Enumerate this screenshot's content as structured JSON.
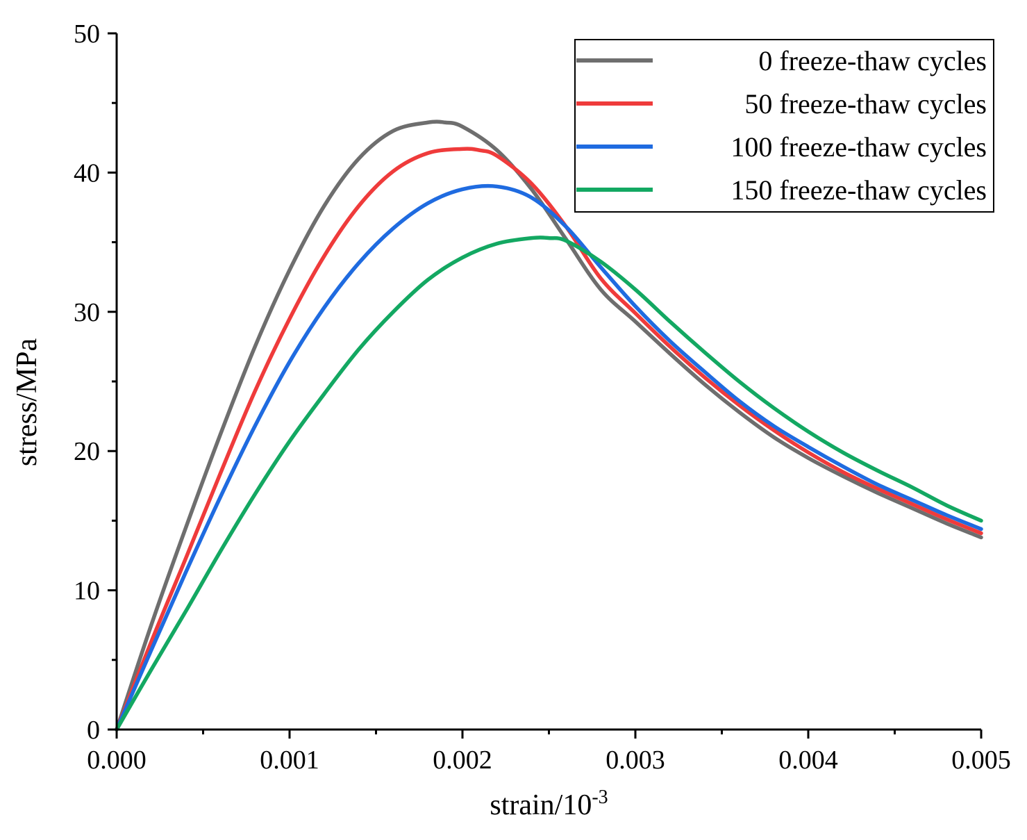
{
  "chart_data": {
    "type": "line",
    "xlabel": "strain/10",
    "xlabel_superscript": "-3",
    "ylabel": "stress/MPa",
    "xlim": [
      0,
      0.005
    ],
    "ylim": [
      0,
      50
    ],
    "x_ticks": [
      0,
      0.001,
      0.002,
      0.003,
      0.004,
      0.005
    ],
    "x_tick_labels": [
      "0.000",
      "0.001",
      "0.002",
      "0.003",
      "0.004",
      "0.005"
    ],
    "x_minor_ticks": [
      0.0005,
      0.0015,
      0.0025,
      0.0035,
      0.0045
    ],
    "y_ticks": [
      0,
      10,
      20,
      30,
      40,
      50
    ],
    "y_tick_labels": [
      "0",
      "10",
      "20",
      "30",
      "40",
      "50"
    ],
    "y_minor_ticks": [
      5,
      15,
      25,
      35,
      45
    ],
    "grid": false,
    "legend_position": "top-right",
    "series": [
      {
        "name": "0 freeze-thaw cycles",
        "color": "#6e6e6e",
        "x": [
          0,
          0.0002,
          0.0004,
          0.0006,
          0.0008,
          0.001,
          0.0012,
          0.0014,
          0.0016,
          0.0018,
          0.0019,
          0.002,
          0.0022,
          0.0024,
          0.0026,
          0.0028,
          0.003,
          0.0032,
          0.0034,
          0.0036,
          0.0038,
          0.004,
          0.0042,
          0.0044,
          0.0046,
          0.0048,
          0.005
        ],
        "values": [
          0,
          7.5,
          14.5,
          21.2,
          27.5,
          33.0,
          37.6,
          41.0,
          43.0,
          43.6,
          43.6,
          43.3,
          41.6,
          38.8,
          35.2,
          31.6,
          29.3,
          27.0,
          24.8,
          22.8,
          21.0,
          19.5,
          18.2,
          17.0,
          15.9,
          14.8,
          13.8
        ]
      },
      {
        "name": "50 freeze-thaw cycles",
        "color": "#ef3b3b",
        "x": [
          0,
          0.0002,
          0.0004,
          0.0006,
          0.0008,
          0.001,
          0.0012,
          0.0014,
          0.0016,
          0.0018,
          0.002,
          0.0021,
          0.0022,
          0.0024,
          0.0026,
          0.0028,
          0.003,
          0.0032,
          0.0034,
          0.0036,
          0.0038,
          0.004,
          0.0042,
          0.0044,
          0.0046,
          0.0048,
          0.005
        ],
        "values": [
          0,
          6.3,
          12.3,
          18.4,
          24.3,
          29.5,
          34.0,
          37.6,
          40.1,
          41.4,
          41.7,
          41.6,
          41.2,
          39.2,
          36.1,
          32.4,
          29.9,
          27.5,
          25.3,
          23.3,
          21.5,
          19.9,
          18.5,
          17.3,
          16.2,
          15.1,
          14.1
        ]
      },
      {
        "name": "100 freeze-thaw cycles",
        "color": "#1f6be0",
        "x": [
          0,
          0.0002,
          0.0004,
          0.0006,
          0.0008,
          0.001,
          0.0012,
          0.0014,
          0.0016,
          0.0018,
          0.002,
          0.0022,
          0.0024,
          0.0026,
          0.0028,
          0.003,
          0.0032,
          0.0034,
          0.0036,
          0.0038,
          0.004,
          0.0042,
          0.0044,
          0.0046,
          0.0048,
          0.005
        ],
        "values": [
          0,
          5.7,
          11.3,
          16.7,
          21.8,
          26.4,
          30.3,
          33.5,
          36.0,
          37.8,
          38.8,
          39.0,
          38.2,
          36.1,
          33.2,
          30.4,
          27.9,
          25.7,
          23.6,
          21.8,
          20.3,
          18.9,
          17.6,
          16.5,
          15.4,
          14.4
        ]
      },
      {
        "name": "150 freeze-thaw cycles",
        "color": "#13a862",
        "x": [
          0,
          0.0002,
          0.0004,
          0.0006,
          0.0008,
          0.001,
          0.0012,
          0.0014,
          0.0016,
          0.0018,
          0.002,
          0.0022,
          0.0024,
          0.0025,
          0.0026,
          0.0028,
          0.003,
          0.0032,
          0.0034,
          0.0036,
          0.0038,
          0.004,
          0.0042,
          0.0044,
          0.0046,
          0.0048,
          0.005
        ],
        "values": [
          0,
          4.3,
          8.5,
          12.8,
          16.9,
          20.7,
          24.1,
          27.3,
          30.0,
          32.3,
          33.9,
          34.9,
          35.3,
          35.3,
          35.1,
          33.6,
          31.6,
          29.3,
          27.1,
          25.0,
          23.1,
          21.4,
          19.9,
          18.6,
          17.4,
          16.1,
          15.0
        ]
      }
    ]
  }
}
